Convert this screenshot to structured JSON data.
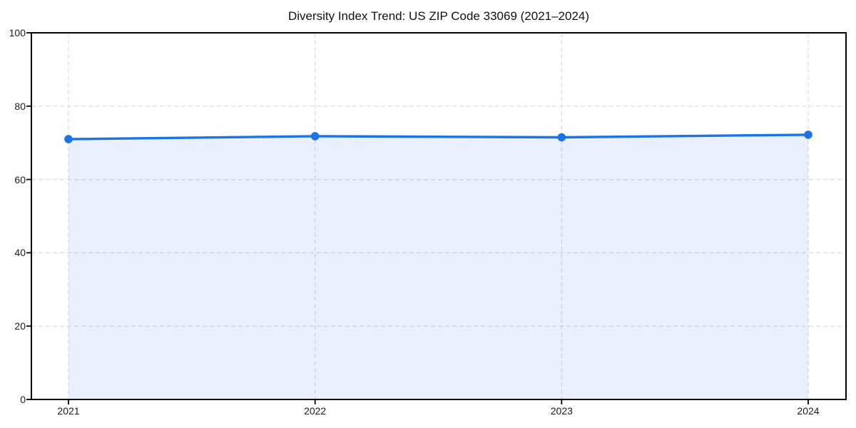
{
  "title": "Diversity Index Trend: US ZIP Code 33069 (2021–2024)",
  "chart_data": {
    "type": "area",
    "title": "Diversity Index Trend: US ZIP Code 33069 (2021–2024)",
    "x": [
      "2021",
      "2022",
      "2023",
      "2024"
    ],
    "series": [
      {
        "name": "Diversity Index",
        "values": [
          71.0,
          71.8,
          71.5,
          72.2
        ]
      }
    ],
    "xlabel": "",
    "ylabel": "",
    "ylim": [
      0,
      100
    ],
    "yticks": [
      0,
      20,
      40,
      60,
      80,
      100
    ],
    "grid": "dashed both axes",
    "legend_position": "none",
    "colors": {
      "line": "#1a73e8",
      "fill": "rgba(50, 100, 230, 0.10)",
      "axis": "#000000",
      "grid": "#dcdcdc",
      "tick_label": "#1a1a1a",
      "title": "#111111",
      "background": "#ffffff"
    }
  }
}
